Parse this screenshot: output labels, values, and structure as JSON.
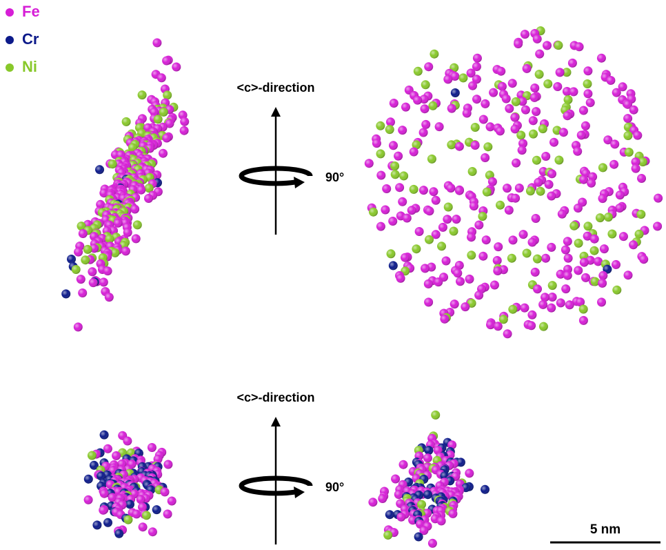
{
  "legend": [
    {
      "label": "Fe",
      "color": "#d61ed6"
    },
    {
      "label": "Cr",
      "color": "#0c1a8a"
    },
    {
      "label": "Ni",
      "color": "#88c82a"
    }
  ],
  "views": [
    {
      "axis_label": "<c>-direction",
      "rotation_label": "90°"
    },
    {
      "axis_label": "<c>-direction",
      "rotation_label": "90°"
    }
  ],
  "scale_bar": {
    "label": "5 nm"
  }
}
